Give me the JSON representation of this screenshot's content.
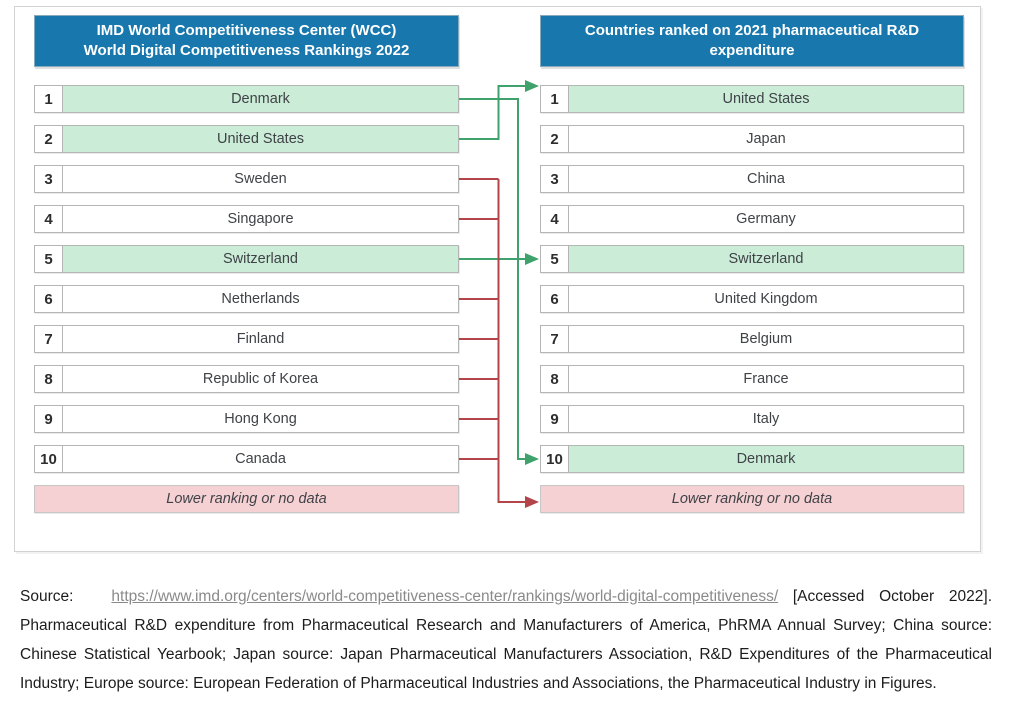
{
  "colors": {
    "header_blue": "#1878AE",
    "highlight_green": "#cbedd8",
    "footer_pink": "#f5d1d4",
    "line_green": "#3FA26C",
    "line_red": "#B2444A"
  },
  "left_table": {
    "title_lines": [
      "IMD World Competitiveness Center (WCC)",
      "World Digital Competitiveness Rankings 2022"
    ],
    "rows": [
      {
        "rank": "1",
        "country": "Denmark",
        "highlight": true
      },
      {
        "rank": "2",
        "country": "United States",
        "highlight": true
      },
      {
        "rank": "3",
        "country": "Sweden",
        "highlight": false
      },
      {
        "rank": "4",
        "country": "Singapore",
        "highlight": false
      },
      {
        "rank": "5",
        "country": "Switzerland",
        "highlight": true
      },
      {
        "rank": "6",
        "country": "Netherlands",
        "highlight": false
      },
      {
        "rank": "7",
        "country": "Finland",
        "highlight": false
      },
      {
        "rank": "8",
        "country": "Republic of Korea",
        "highlight": false
      },
      {
        "rank": "9",
        "country": "Hong Kong",
        "highlight": false
      },
      {
        "rank": "10",
        "country": "Canada",
        "highlight": false
      }
    ],
    "footer": "Lower ranking or no data"
  },
  "right_table": {
    "title": "Countries ranked on 2021 pharmaceutical R&D expenditure",
    "rows": [
      {
        "rank": "1",
        "country": "United States",
        "highlight": true
      },
      {
        "rank": "2",
        "country": "Japan",
        "highlight": false
      },
      {
        "rank": "3",
        "country": "China",
        "highlight": false
      },
      {
        "rank": "4",
        "country": "Germany",
        "highlight": false
      },
      {
        "rank": "5",
        "country": "Switzerland",
        "highlight": true
      },
      {
        "rank": "6",
        "country": "United Kingdom",
        "highlight": false
      },
      {
        "rank": "7",
        "country": "Belgium",
        "highlight": false
      },
      {
        "rank": "8",
        "country": "France",
        "highlight": false
      },
      {
        "rank": "9",
        "country": "Italy",
        "highlight": false
      },
      {
        "rank": "10",
        "country": "Denmark",
        "highlight": true
      }
    ],
    "footer": "Lower ranking or no data"
  },
  "connections": {
    "matches": [
      {
        "left_rank": 1,
        "right_rank": 10,
        "country": "Denmark"
      },
      {
        "left_rank": 2,
        "right_rank": 1,
        "country": "United States"
      },
      {
        "left_rank": 5,
        "right_rank": 5,
        "country": "Switzerland"
      }
    ],
    "to_lower_left_ranks": [
      3,
      4,
      6,
      7,
      8,
      9,
      10
    ]
  },
  "source": {
    "label": "Source:",
    "link": "https://www.imd.org/centers/world-competitiveness-center/rankings/world-digital-competitiveness/",
    "rest": " [Accessed October 2022]. Pharmaceutical R&D expenditure from Pharmaceutical Research and Manufacturers of America, PhRMA Annual Survey; China source: Chinese Statistical Yearbook; Japan source: Japan Pharmaceutical Manufacturers Association, R&D Expenditures of the Pharmaceutical Industry; Europe source: European Federation of Pharmaceutical Industries and Associations, the Pharmaceutical Industry in Figures."
  }
}
